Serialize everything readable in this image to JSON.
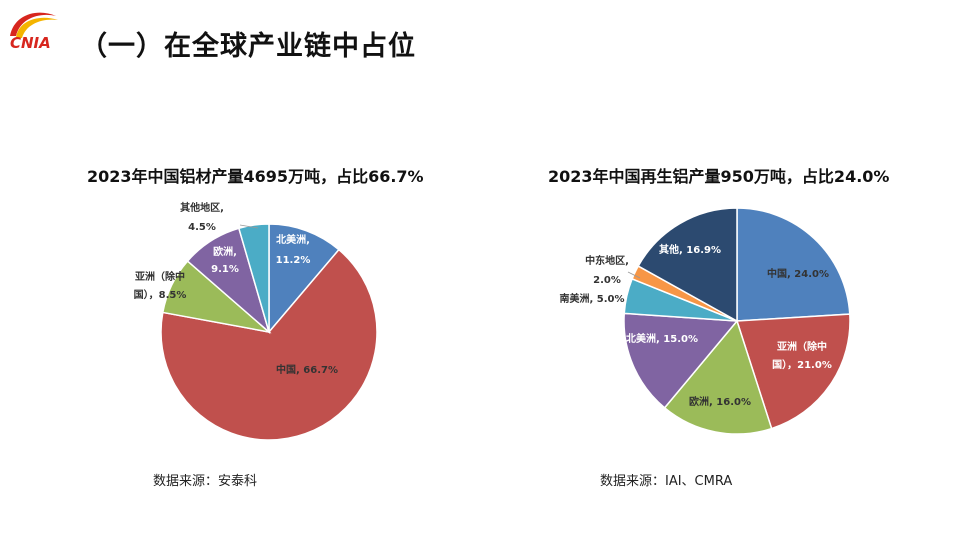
{
  "header": {
    "logo_text": "CNIA",
    "title": "（一）在全球产业链中占位"
  },
  "chart_data": [
    {
      "type": "pie",
      "title": "2023年中国铝材产量4695万吨，占比66.7%",
      "unit": "%",
      "slices": [
        {
          "label": "北美洲,",
          "value_text": "11.2%",
          "value": 11.2,
          "color": "#4f81bd",
          "text_color": "#ffffff",
          "label_mode": "inside"
        },
        {
          "label": "中国, 66.7%",
          "value": 66.7,
          "color": "#c0504d",
          "text_color": "#333333",
          "label_mode": "inside"
        },
        {
          "label": "亚洲（除中",
          "label2": "国），8.5%",
          "value": 8.5,
          "color": "#9bbb59",
          "text_color": "#333333",
          "label_mode": "outside"
        },
        {
          "label": "欧洲,",
          "value_text": "9.1%",
          "value": 9.1,
          "color": "#8064a2",
          "text_color": "#ffffff",
          "label_mode": "inside"
        },
        {
          "label": "其他地区,",
          "value_text": "4.5%",
          "value": 4.5,
          "color": "#4bacc6",
          "text_color": "#333333",
          "label_mode": "outside"
        }
      ],
      "source": "数据来源：安泰科"
    },
    {
      "type": "pie",
      "title": "2023年中国再生铝产量950万吨，占比24.0%",
      "unit": "%",
      "slices": [
        {
          "label": "中国, 24.0%",
          "value": 24.0,
          "color": "#4f81bd",
          "text_color": "#333333",
          "label_mode": "inside"
        },
        {
          "label": "亚洲（除中",
          "label2": "国），21.0%",
          "value": 21.0,
          "color": "#c0504d",
          "text_color": "#ffffff",
          "label_mode": "inside"
        },
        {
          "label": "欧洲, 16.0%",
          "value": 16.0,
          "color": "#9bbb59",
          "text_color": "#333333",
          "label_mode": "inside"
        },
        {
          "label": "北美洲, 15.0%",
          "value": 15.0,
          "color": "#8064a2",
          "text_color": "#ffffff",
          "label_mode": "inside"
        },
        {
          "label": "南美洲, 5.0%",
          "value": 5.0,
          "color": "#4bacc6",
          "text_color": "#333333",
          "label_mode": "outside"
        },
        {
          "label": "中东地区,",
          "value_text": "2.0%",
          "value": 2.0,
          "color": "#f79646",
          "text_color": "#333333",
          "label_mode": "outside"
        },
        {
          "label": "其他, 16.9%",
          "value": 16.9,
          "color": "#2c4a70",
          "text_color": "#ffffff",
          "label_mode": "inside"
        }
      ],
      "source": "数据来源：IAI、CMRA"
    }
  ]
}
